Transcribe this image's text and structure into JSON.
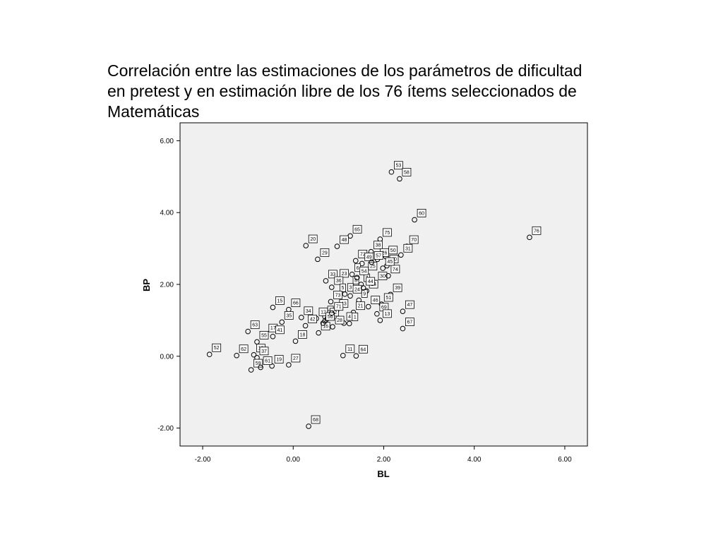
{
  "title_lines": [
    "Correlación entre las estimaciones de los parámetros de dificultad",
    "en pretest y en estimación libre de los 76 ítems seleccionados de",
    "Matemáticas"
  ],
  "chart_data": {
    "type": "scatter",
    "title": "Correlación entre las estimaciones de los parámetros de dificultad en pretest y en estimación libre de los 76 ítems seleccionados de Matemáticas",
    "xlabel": "BL",
    "ylabel": "BP",
    "xlim": [
      -2.5,
      6.5
    ],
    "ylim": [
      -2.5,
      6.5
    ],
    "xticks": [
      -2,
      0,
      2,
      4,
      6
    ],
    "yticks": [
      -2,
      0,
      2,
      4,
      6
    ],
    "xtick_labels": [
      "-2.00",
      "0.00",
      "2.00",
      "4.00",
      "6.00"
    ],
    "ytick_labels": [
      "-2.00",
      "0.00",
      "2.00",
      "4.00",
      "6.00"
    ],
    "grid": false,
    "plot_background": "#f0f0f0",
    "marker": "hollow circle",
    "point_labels_boxed": true,
    "points": [
      {
        "label": "53",
        "x": 2.17,
        "y": 5.13
      },
      {
        "label": "58",
        "x": 2.35,
        "y": 4.94
      },
      {
        "label": "60",
        "x": 2.68,
        "y": 3.8
      },
      {
        "label": "76",
        "x": 5.22,
        "y": 3.31
      },
      {
        "label": "65",
        "x": 1.26,
        "y": 3.35
      },
      {
        "label": "20",
        "x": 0.28,
        "y": 3.08
      },
      {
        "label": "48",
        "x": 0.97,
        "y": 3.06
      },
      {
        "label": "75",
        "x": 1.92,
        "y": 3.26
      },
      {
        "label": "70",
        "x": 2.51,
        "y": 3.06
      },
      {
        "label": "29",
        "x": 0.54,
        "y": 2.7
      },
      {
        "label": "38",
        "x": 1.72,
        "y": 2.91
      },
      {
        "label": "72",
        "x": 1.38,
        "y": 2.66
      },
      {
        "label": "50",
        "x": 2.05,
        "y": 2.77
      },
      {
        "label": "26",
        "x": 1.86,
        "y": 2.7
      },
      {
        "label": "49",
        "x": 1.52,
        "y": 2.58
      },
      {
        "label": "40",
        "x": 2.07,
        "y": 2.52
      },
      {
        "label": "31",
        "x": 2.38,
        "y": 2.82
      },
      {
        "label": "6",
        "x": 1.3,
        "y": 2.28
      },
      {
        "label": "25",
        "x": 1.6,
        "y": 2.32
      },
      {
        "label": "33",
        "x": 0.72,
        "y": 2.1
      },
      {
        "label": "23",
        "x": 0.97,
        "y": 2.12
      },
      {
        "label": "30",
        "x": 1.82,
        "y": 2.05
      },
      {
        "label": "7",
        "x": 1.5,
        "y": 2.0
      },
      {
        "label": "36",
        "x": 0.85,
        "y": 1.92
      },
      {
        "label": "8",
        "x": 1.26,
        "y": 1.93
      },
      {
        "label": "74",
        "x": 2.1,
        "y": 2.24
      },
      {
        "label": "3",
        "x": 1.14,
        "y": 1.73
      },
      {
        "label": "5",
        "x": 0.97,
        "y": 1.72
      },
      {
        "label": "24",
        "x": 1.26,
        "y": 1.68
      },
      {
        "label": "14",
        "x": 1.62,
        "y": 1.82
      },
      {
        "label": "39",
        "x": 2.15,
        "y": 1.72
      },
      {
        "label": "73",
        "x": 0.83,
        "y": 1.52
      },
      {
        "label": "9",
        "x": 1.45,
        "y": 1.56
      },
      {
        "label": "51",
        "x": 1.95,
        "y": 1.45
      },
      {
        "label": "2",
        "x": 0.7,
        "y": 1.1
      },
      {
        "label": "43",
        "x": 0.96,
        "y": 1.28
      },
      {
        "label": "21",
        "x": 1.33,
        "y": 1.22
      },
      {
        "label": "12",
        "x": 0.51,
        "y": 1.05
      },
      {
        "label": "15",
        "x": -0.45,
        "y": 1.36
      },
      {
        "label": "66",
        "x": -0.1,
        "y": 1.3
      },
      {
        "label": "47",
        "x": 2.42,
        "y": 1.25
      },
      {
        "label": "69",
        "x": 1.85,
        "y": 1.18
      },
      {
        "label": "34",
        "x": 0.18,
        "y": 1.08
      },
      {
        "label": "42",
        "x": 0.27,
        "y": 0.85
      },
      {
        "label": "4",
        "x": 1.12,
        "y": 0.92
      },
      {
        "label": "1",
        "x": 1.24,
        "y": 0.91
      },
      {
        "label": "13",
        "x": 1.92,
        "y": 1.0
      },
      {
        "label": "67",
        "x": 2.42,
        "y": 0.77
      },
      {
        "label": "63",
        "x": -1.0,
        "y": 0.69
      },
      {
        "label": "17",
        "x": -0.6,
        "y": 0.6
      },
      {
        "label": "28",
        "x": 0.87,
        "y": 0.82
      },
      {
        "label": "35",
        "x": -0.25,
        "y": 0.95
      },
      {
        "label": "55",
        "x": -0.8,
        "y": 0.4
      },
      {
        "label": "41",
        "x": -0.45,
        "y": 0.55
      },
      {
        "label": "18",
        "x": 0.05,
        "y": 0.42
      },
      {
        "label": "16",
        "x": 0.56,
        "y": 0.65
      },
      {
        "label": "52",
        "x": -1.85,
        "y": 0.05
      },
      {
        "label": "62",
        "x": -1.25,
        "y": 0.02
      },
      {
        "label": "10",
        "x": -0.87,
        "y": 0.04
      },
      {
        "label": "11",
        "x": 1.1,
        "y": 0.02
      },
      {
        "label": "64",
        "x": 1.39,
        "y": 0.01
      },
      {
        "label": "37",
        "x": -0.8,
        "y": -0.04
      },
      {
        "label": "27",
        "x": -0.1,
        "y": -0.24
      },
      {
        "label": "19",
        "x": -0.47,
        "y": -0.27
      },
      {
        "label": "59",
        "x": -0.93,
        "y": -0.38
      },
      {
        "label": "61",
        "x": -0.72,
        "y": -0.31
      },
      {
        "label": "68",
        "x": 0.34,
        "y": -1.95
      },
      {
        "label": "22",
        "x": 0.7,
        "y": 0.98
      },
      {
        "label": "32",
        "x": 0.75,
        "y": 1.04
      },
      {
        "label": "44",
        "x": 1.55,
        "y": 1.9
      },
      {
        "label": "45",
        "x": 1.98,
        "y": 2.45
      },
      {
        "label": "46",
        "x": 1.66,
        "y": 1.38
      },
      {
        "label": "54",
        "x": 1.41,
        "y": 2.19
      },
      {
        "label": "56",
        "x": 0.66,
        "y": 0.92
      },
      {
        "label": "57",
        "x": 1.73,
        "y": 2.62
      },
      {
        "label": "71",
        "x": 0.85,
        "y": 1.2
      }
    ]
  }
}
